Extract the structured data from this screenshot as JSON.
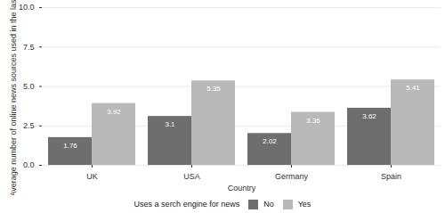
{
  "chart_data": {
    "type": "bar",
    "categories": [
      "UK",
      "USA",
      "Germany",
      "Spain"
    ],
    "series": [
      {
        "name": "No",
        "color": "#6e6e6e",
        "values": [
          1.76,
          3.1,
          2.02,
          3.62
        ]
      },
      {
        "name": "Yes",
        "color": "#b9b9b9",
        "values": [
          3.92,
          5.35,
          3.36,
          5.41
        ]
      }
    ],
    "x_label": "Country",
    "y_label": "Average number of online news sources used in the last week",
    "legend_title": "Uses a serch engine for news",
    "legend": "bottom",
    "ylim": [
      0,
      10
    ],
    "yticks": [
      {
        "value": 0,
        "label": "0.0"
      },
      {
        "value": 2.5,
        "label": "2.5"
      },
      {
        "value": 5,
        "label": "5.0"
      },
      {
        "value": 7.5,
        "label": "7.5"
      },
      {
        "value": 10,
        "label": "10.0"
      }
    ],
    "grid": true,
    "data_labels": true
  }
}
